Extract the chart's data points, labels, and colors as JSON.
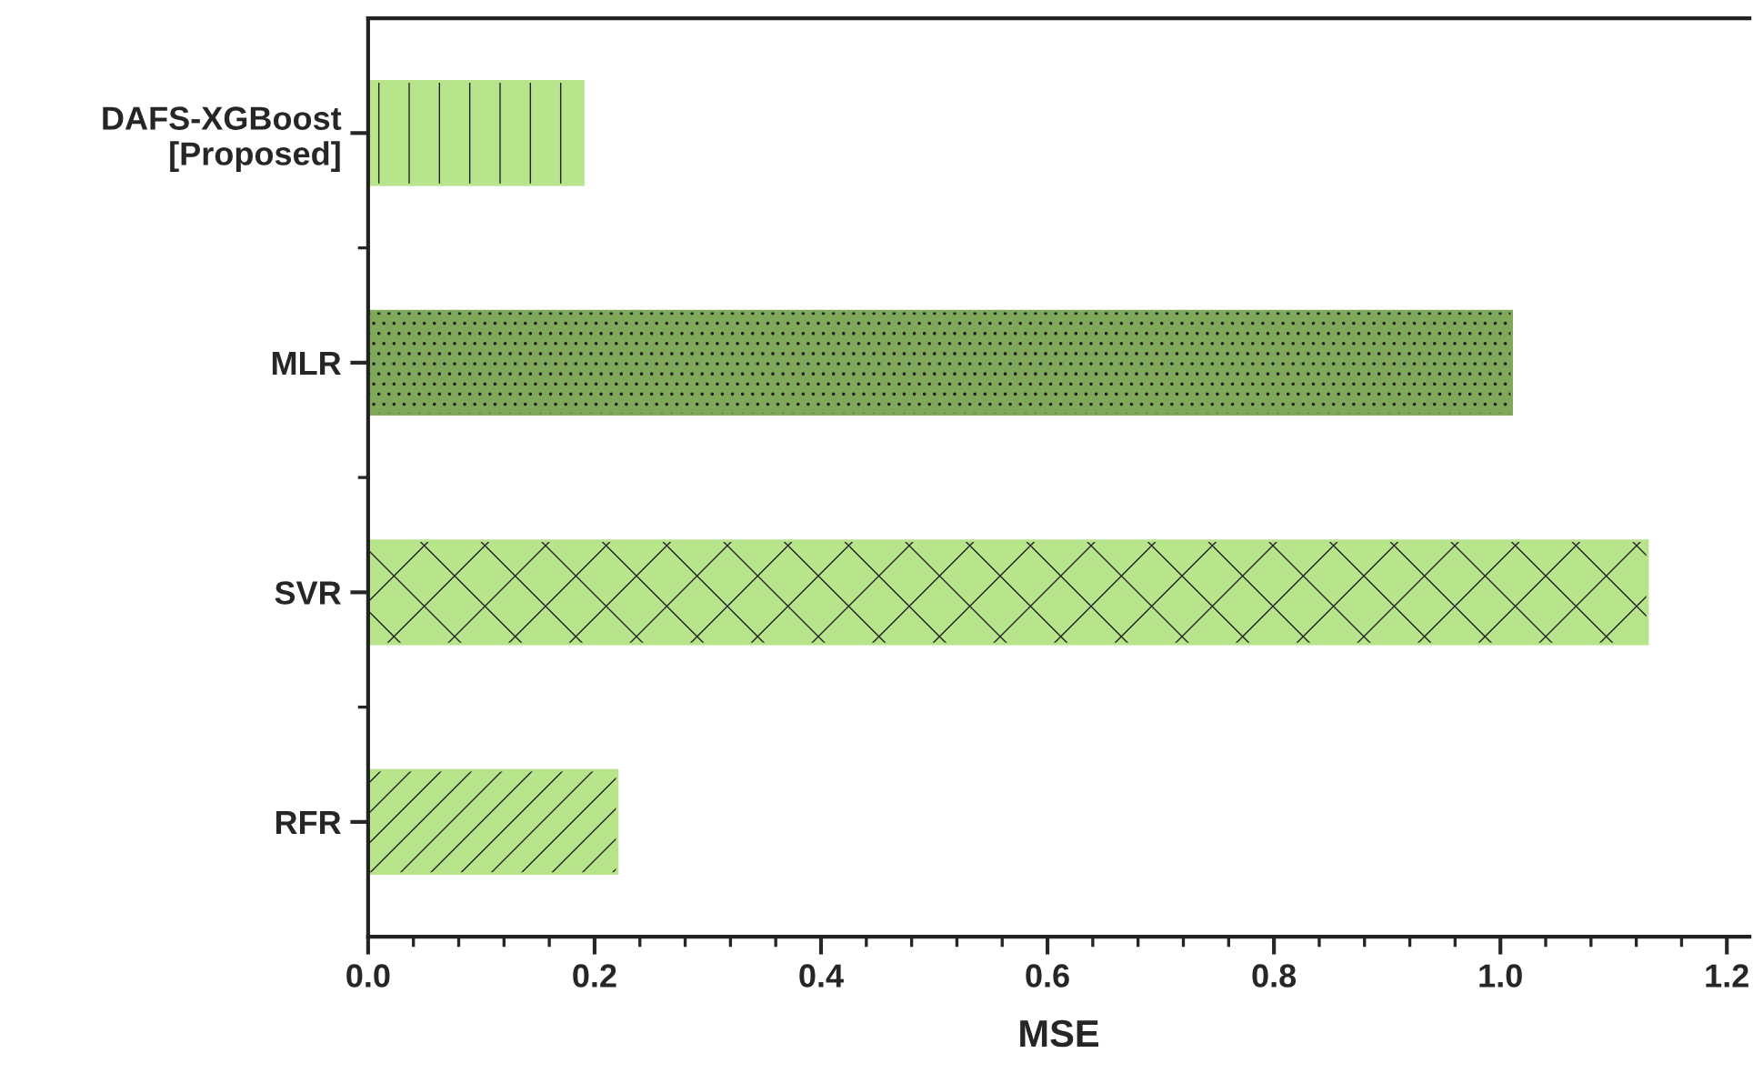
{
  "chart_data": {
    "type": "bar",
    "orientation": "horizontal",
    "xlabel": "MSE",
    "categories": [
      "DAFS-XGBoost\n[Proposed]",
      "MLR",
      "SVR",
      "RFR"
    ],
    "values": [
      0.19,
      1.01,
      1.13,
      0.22
    ],
    "colors": [
      "#b8e48c",
      "#7fa85a",
      "#b8e48c",
      "#b8e48c"
    ],
    "xlim": [
      0,
      1.22
    ],
    "xticks": [
      {
        "value": 0,
        "label": "0.0"
      },
      0.2,
      0.4,
      0.6,
      0.8,
      {
        "value": 1.0,
        "label": "1.0"
      },
      1.2
    ]
  }
}
